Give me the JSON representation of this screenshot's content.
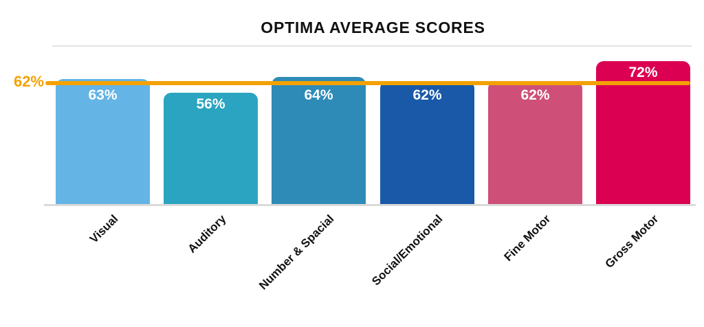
{
  "title": "OPTIMA AVERAGE SCORES",
  "target_line": {
    "label": "62%",
    "value": 62,
    "color": "#F4A203"
  },
  "colors": {
    "background": "#FFFFFF",
    "title_text": "#111111",
    "axis_label_text": "#111111",
    "bar_label_text": "#FFFFFF",
    "target_orange": "#F4A203",
    "top_gridline": "#E4E4E4",
    "baseline": "#DADADA"
  },
  "chart_data": {
    "type": "bar",
    "title": "OPTIMA AVERAGE SCORES",
    "categories": [
      "Visual",
      "Auditory",
      "Number & Spacial",
      "Social/Emotional",
      "Fine Motor",
      "Gross Motor"
    ],
    "values": [
      63,
      56,
      64,
      62,
      62,
      72
    ],
    "data_labels": [
      "63%",
      "56%",
      "64%",
      "62%",
      "62%",
      "72%"
    ],
    "bar_colors": [
      "#64B4E5",
      "#2AA4C0",
      "#2E8BB7",
      "#1959A8",
      "#CE4F78",
      "#DB0051"
    ],
    "xlabel": "",
    "ylabel": "",
    "ylim": [
      0,
      80
    ],
    "target_line": {
      "value": 62,
      "label": "62%",
      "color": "#F4A203",
      "label_position": "left"
    },
    "gridlines": {
      "top_gridline_value": 80,
      "other_gridlines": "none"
    },
    "legend": "none",
    "bar_label_position": "inside-top",
    "x_label_rotation_deg": -45
  }
}
